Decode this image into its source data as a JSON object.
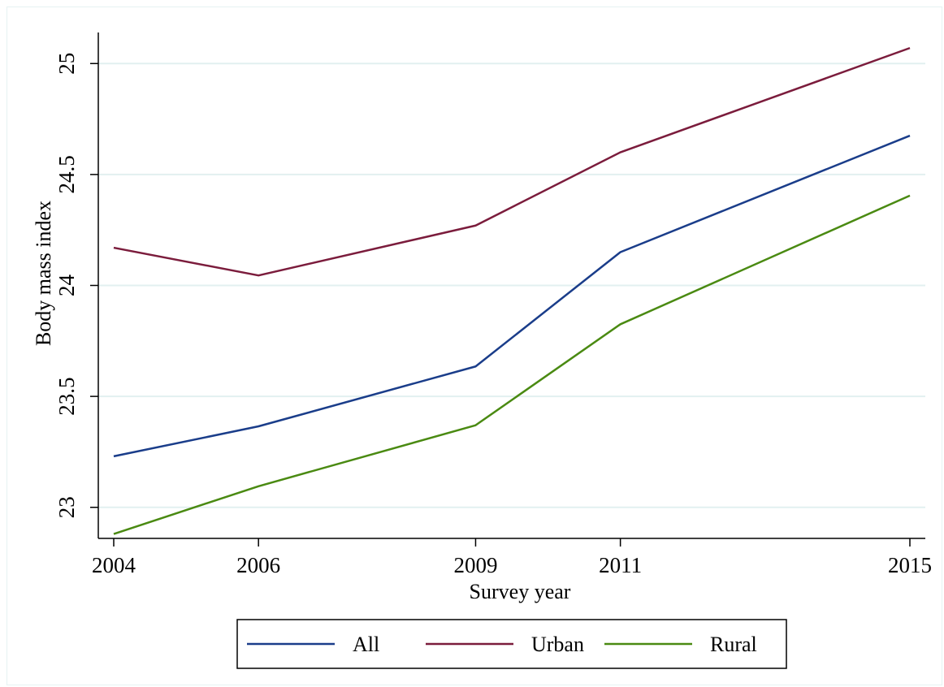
{
  "chart_data": {
    "type": "line",
    "x": [
      2004,
      2006,
      2009,
      2011,
      2015
    ],
    "series": [
      {
        "name": "All",
        "color": "#1a3d8a",
        "values": [
          23.23,
          23.365,
          23.635,
          24.15,
          24.675
        ]
      },
      {
        "name": "Urban",
        "color": "#7b1c3c",
        "values": [
          24.17,
          24.045,
          24.27,
          24.6,
          25.07
        ]
      },
      {
        "name": "Rural",
        "color": "#4a8a12",
        "values": [
          22.88,
          23.095,
          23.37,
          23.825,
          24.405
        ]
      }
    ],
    "xlabel": "Survey year",
    "ylabel": "Body mass index",
    "xticks": [
      "2004",
      "2006",
      "2009",
      "2011",
      "2015"
    ],
    "yticks": [
      "23",
      "23.5",
      "24",
      "24.5",
      "25"
    ],
    "xlim": [
      2004,
      2015
    ],
    "ylim": [
      22.86,
      25.14
    ],
    "grid": true,
    "legend_position": "bottom"
  }
}
